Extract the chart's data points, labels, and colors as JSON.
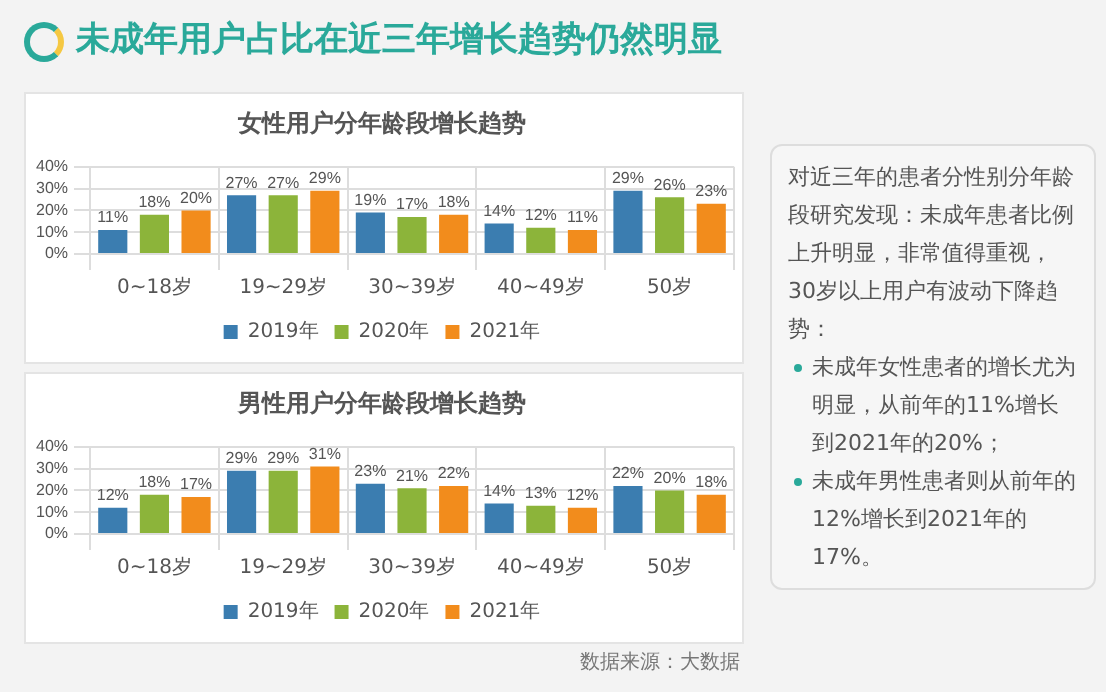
{
  "chart_data": [
    {
      "type": "other",
      "title": "未成年用户占比在近三年增长趋势仍然明显"
    },
    {
      "type": "bar",
      "title": "女性用户分年龄段增长趋势",
      "categories": [
        "0~18岁",
        "19~29岁",
        "30~39岁",
        "40~49岁",
        "50岁"
      ],
      "series": [
        {
          "name": "2019年",
          "color": "#3b7db0",
          "values": [
            11,
            27,
            19,
            14,
            29
          ],
          "value_labels": [
            "11%",
            "27%",
            "19%",
            "14%",
            "29%"
          ]
        },
        {
          "name": "2020年",
          "color": "#8cb43a",
          "values": [
            18,
            27,
            17,
            12,
            26
          ],
          "value_labels": [
            "18%",
            "27%",
            "17%",
            "12%",
            "26%"
          ]
        },
        {
          "name": "2021年",
          "color": "#f28c1c",
          "values": [
            20,
            29,
            18,
            11,
            23
          ],
          "value_labels": [
            "20%",
            "29%",
            "18%",
            "11%",
            "23%"
          ]
        }
      ],
      "ylim": [
        0,
        40
      ],
      "yticks": [
        {
          "value": 0,
          "label": "0%"
        },
        {
          "value": 10,
          "label": "10%"
        },
        {
          "value": 20,
          "label": "20%"
        },
        {
          "value": 30,
          "label": "30%"
        },
        {
          "value": 40,
          "label": "40%"
        }
      ],
      "grid": true,
      "legend": "bottom"
    },
    {
      "type": "bar",
      "title": "男性用户分年龄段增长趋势",
      "categories": [
        "0~18岁",
        "19~29岁",
        "30~39岁",
        "40~49岁",
        "50岁"
      ],
      "series": [
        {
          "name": "2019年",
          "color": "#3b7db0",
          "values": [
            12,
            29,
            23,
            14,
            22
          ],
          "value_labels": [
            "12%",
            "29%",
            "23%",
            "14%",
            "22%"
          ]
        },
        {
          "name": "2020年",
          "color": "#8cb43a",
          "values": [
            18,
            29,
            21,
            13,
            20
          ],
          "value_labels": [
            "18%",
            "29%",
            "21%",
            "13%",
            "20%"
          ]
        },
        {
          "name": "2021年",
          "color": "#f28c1c",
          "values": [
            17,
            31,
            22,
            12,
            18
          ],
          "value_labels": [
            "17%",
            "31%",
            "22%",
            "12%",
            "18%"
          ]
        }
      ],
      "ylim": [
        0,
        40
      ],
      "yticks": [
        {
          "value": 0,
          "label": "0%"
        },
        {
          "value": 10,
          "label": "10%"
        },
        {
          "value": 20,
          "label": "20%"
        },
        {
          "value": 30,
          "label": "30%"
        },
        {
          "value": 40,
          "label": "40%"
        }
      ],
      "grid": true,
      "legend": "bottom",
      "annotations": [
        "数据来源：大数据"
      ]
    },
    {
      "type": "other",
      "annotations": [
        "对近三年的患者分性别分年龄段研究发现：未成年患者比例上升明显，非常值得重视，30岁以上用户有波动下降趋势：",
        "未成年女性患者的增长尤为明显，从前年的11%增长到2021年的20%；",
        "未成年男性患者则从前年的12%增长到2021年的17%。"
      ]
    }
  ]
}
